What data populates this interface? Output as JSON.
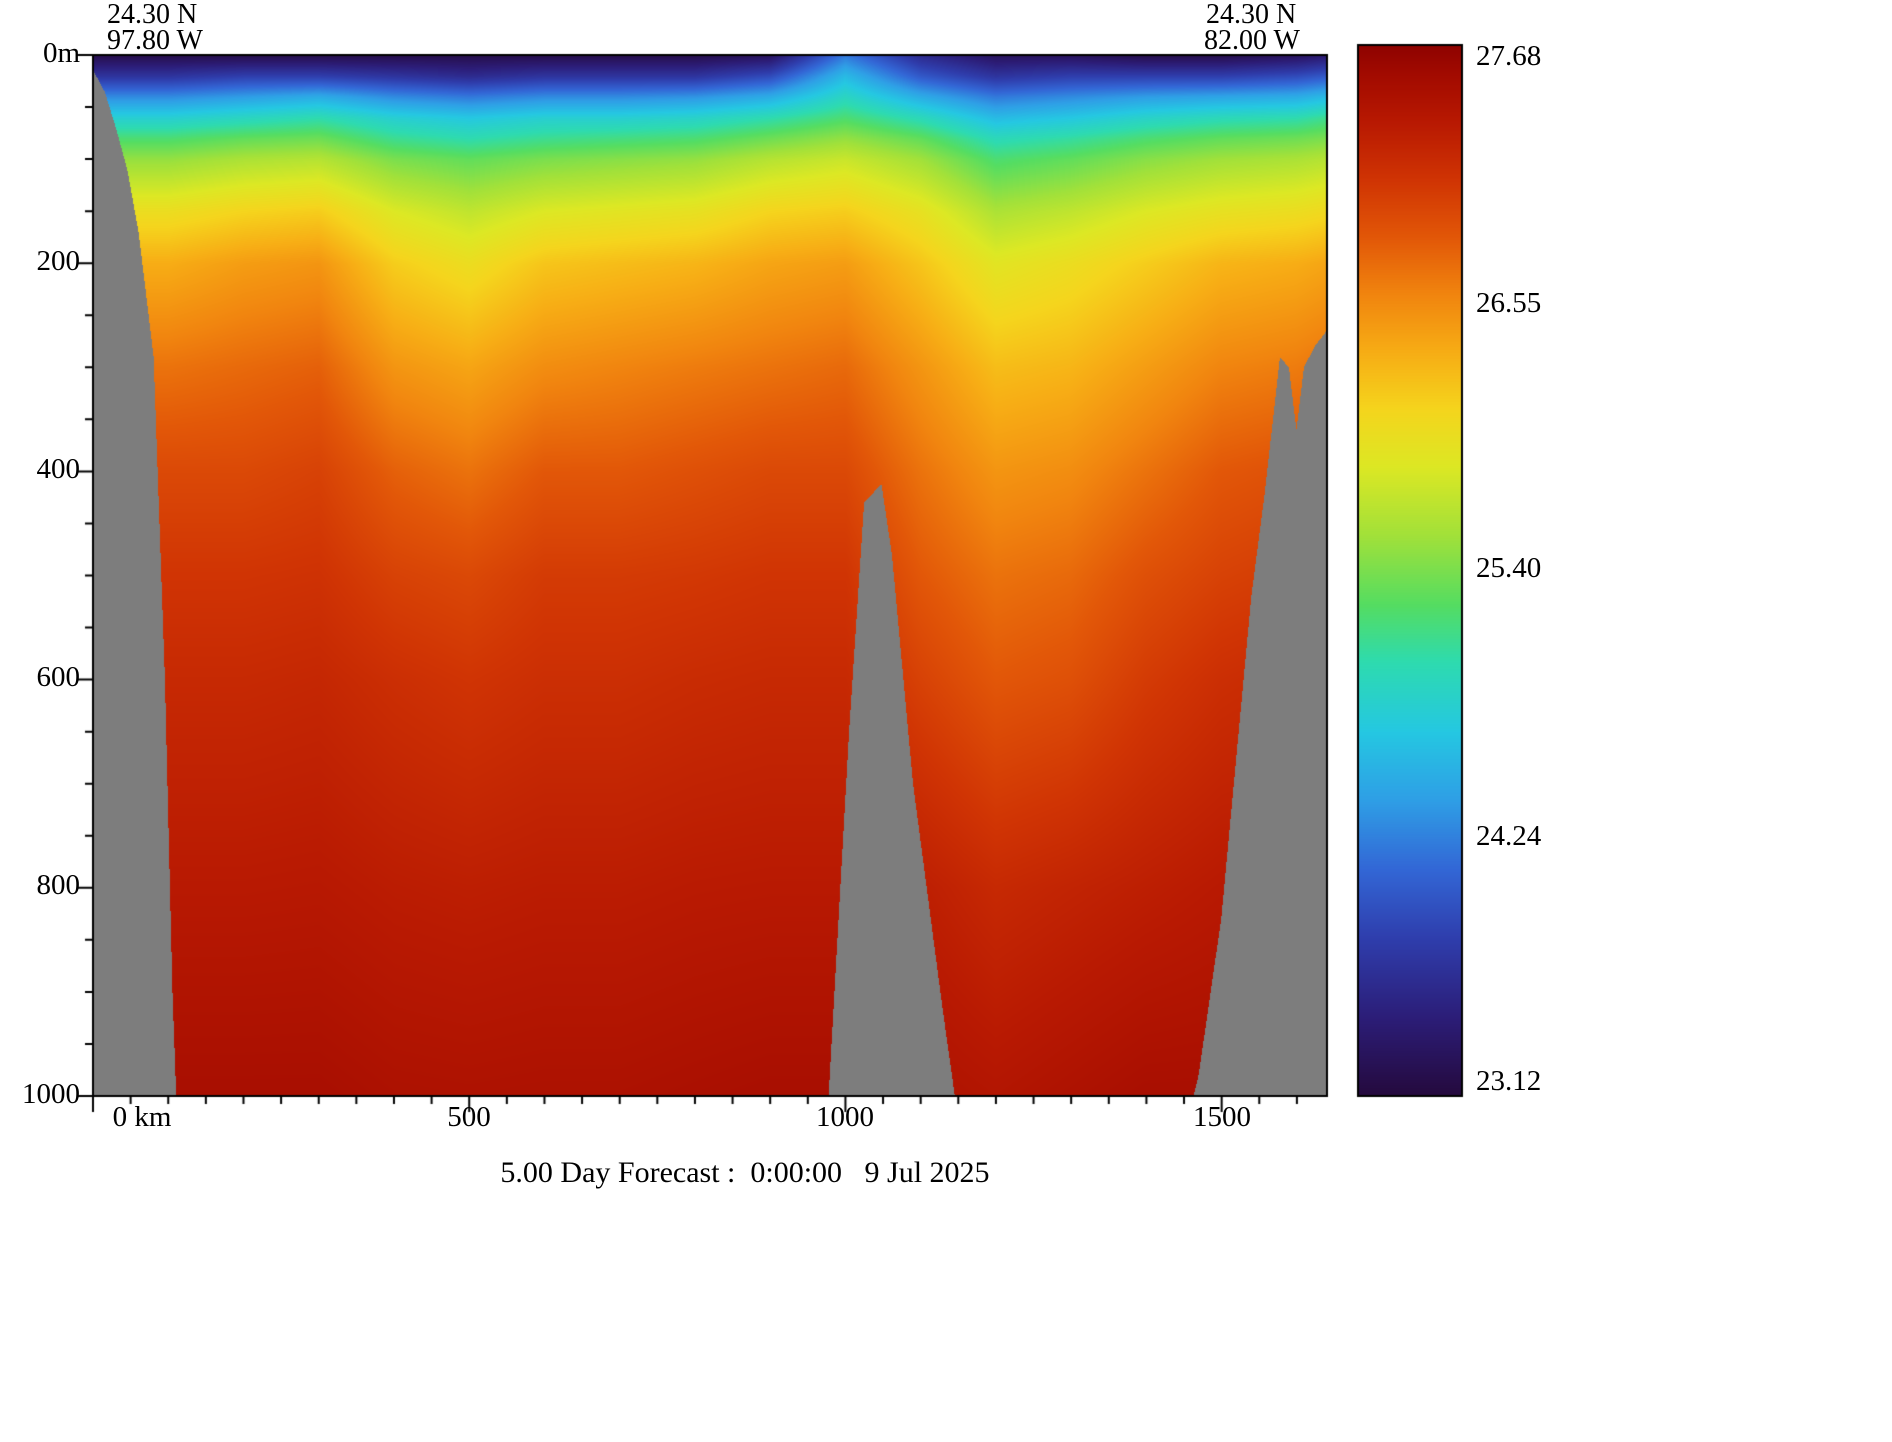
{
  "header": {
    "left": {
      "lat": "24.30 N",
      "lon": "97.80 W"
    },
    "right": {
      "lat": "24.30 N",
      "lon": "82.00 W"
    }
  },
  "caption": "5.00 Day Forecast :  0:00:00   9 Jul 2025",
  "axes": {
    "y_labels": [
      "0m",
      "200",
      "400",
      "600",
      "800",
      "1000"
    ],
    "x_labels": [
      "0 km",
      "500",
      "1000",
      "1500"
    ]
  },
  "colorbar": {
    "labels": [
      "27.68",
      "26.55",
      "25.40",
      "24.24",
      "23.12"
    ]
  },
  "chart_data": {
    "type": "heatmap",
    "title": "5.00 Day Forecast :  0:00:00   9 Jul 2025",
    "section_start": {
      "lat": "24.30 N",
      "lon": "97.80 W"
    },
    "section_end": {
      "lat": "24.30 N",
      "lon": "82.00 W"
    },
    "x_unit": "km",
    "y_unit": "m",
    "x_range": [
      0,
      1640
    ],
    "depth_range": [
      0,
      1000
    ],
    "x_major_ticks": [
      0,
      500,
      1000,
      1500
    ],
    "x_minor_step": 50,
    "y_major_ticks": [
      0,
      200,
      400,
      600,
      800,
      1000
    ],
    "y_minor_step": 50,
    "value_range": [
      23.12,
      27.68
    ],
    "colorbar_ticks": [
      27.68,
      26.55,
      25.4,
      24.24,
      23.12
    ],
    "land_color": "#7d7d7d",
    "colormap": [
      {
        "v": 23.12,
        "c": "#250a3e"
      },
      {
        "v": 23.45,
        "c": "#2c1d77"
      },
      {
        "v": 23.8,
        "c": "#2f3ead"
      },
      {
        "v": 24.1,
        "c": "#3367d6"
      },
      {
        "v": 24.4,
        "c": "#2f9fe6"
      },
      {
        "v": 24.7,
        "c": "#25c8e2"
      },
      {
        "v": 25.0,
        "c": "#2edbb0"
      },
      {
        "v": 25.25,
        "c": "#55dd62"
      },
      {
        "v": 25.55,
        "c": "#a2e13a"
      },
      {
        "v": 25.85,
        "c": "#dde824"
      },
      {
        "v": 26.1,
        "c": "#f5d51d"
      },
      {
        "v": 26.35,
        "c": "#f7ad15"
      },
      {
        "v": 26.6,
        "c": "#f1850f"
      },
      {
        "v": 26.85,
        "c": "#e25708"
      },
      {
        "v": 27.1,
        "c": "#d03404"
      },
      {
        "v": 27.35,
        "c": "#b81902"
      },
      {
        "v": 27.55,
        "c": "#a30b00"
      },
      {
        "v": 27.68,
        "c": "#8f0300"
      }
    ],
    "orientation": "values[xIndex][depthIndex]",
    "x": [
      0,
      100,
      200,
      300,
      400,
      500,
      600,
      700,
      800,
      900,
      1000,
      1100,
      1200,
      1300,
      1400,
      1500,
      1600,
      1640
    ],
    "depths": [
      0,
      20,
      40,
      60,
      80,
      100,
      150,
      200,
      300,
      400,
      500,
      600,
      800,
      1000
    ],
    "values": [
      [
        23.2,
        23.7,
        24.3,
        24.8,
        25.2,
        25.5,
        26.0,
        26.35,
        26.7,
        26.95,
        27.1,
        27.2,
        27.35,
        27.5
      ],
      [
        23.2,
        23.7,
        24.3,
        24.8,
        25.2,
        25.5,
        26.0,
        26.35,
        26.7,
        26.95,
        27.1,
        27.2,
        27.35,
        27.5
      ],
      [
        23.2,
        23.8,
        24.4,
        24.9,
        25.3,
        25.6,
        26.1,
        26.45,
        26.75,
        26.95,
        27.1,
        27.2,
        27.35,
        27.5
      ],
      [
        23.2,
        23.8,
        24.5,
        25.0,
        25.35,
        25.65,
        26.15,
        26.5,
        26.8,
        27.0,
        27.12,
        27.22,
        27.36,
        27.5
      ],
      [
        23.2,
        23.7,
        24.3,
        24.8,
        25.1,
        25.4,
        25.85,
        26.15,
        26.5,
        26.8,
        27.0,
        27.15,
        27.32,
        27.46
      ],
      [
        23.2,
        23.6,
        24.2,
        24.7,
        25.0,
        25.3,
        25.7,
        26.0,
        26.4,
        26.7,
        26.95,
        27.1,
        27.3,
        27.45
      ],
      [
        23.2,
        23.7,
        24.3,
        24.8,
        25.1,
        25.4,
        25.85,
        26.2,
        26.55,
        26.85,
        27.05,
        27.15,
        27.32,
        27.46
      ],
      [
        23.2,
        23.7,
        24.3,
        24.8,
        25.15,
        25.45,
        25.9,
        26.25,
        26.6,
        26.85,
        27.05,
        27.15,
        27.32,
        27.46
      ],
      [
        23.2,
        23.7,
        24.35,
        24.85,
        25.2,
        25.5,
        25.95,
        26.3,
        26.65,
        26.9,
        27.07,
        27.18,
        27.34,
        27.48
      ],
      [
        23.3,
        23.9,
        24.5,
        25.0,
        25.35,
        25.65,
        26.1,
        26.4,
        26.7,
        26.95,
        27.1,
        27.2,
        27.35,
        27.5
      ],
      [
        24.2,
        24.6,
        24.9,
        25.2,
        25.5,
        25.75,
        26.15,
        26.45,
        26.75,
        26.95,
        27.1,
        27.2,
        27.35,
        27.5
      ],
      [
        23.6,
        24.0,
        24.5,
        24.95,
        25.3,
        25.55,
        25.95,
        26.2,
        26.5,
        26.7,
        26.85,
        27.0,
        27.3,
        27.45
      ],
      [
        23.3,
        23.7,
        24.2,
        24.6,
        24.95,
        25.2,
        25.6,
        25.9,
        26.25,
        26.5,
        26.7,
        26.85,
        27.2,
        27.4
      ],
      [
        23.3,
        23.8,
        24.3,
        24.7,
        25.05,
        25.3,
        25.7,
        26.0,
        26.3,
        26.55,
        26.75,
        26.9,
        27.25,
        27.45
      ],
      [
        23.2,
        23.8,
        24.4,
        24.85,
        25.2,
        25.45,
        25.85,
        26.15,
        26.45,
        26.7,
        26.9,
        27.05,
        27.3,
        27.5
      ],
      [
        23.2,
        23.8,
        24.45,
        24.95,
        25.3,
        25.55,
        25.95,
        26.3,
        26.6,
        26.85,
        27.0,
        27.15,
        27.35,
        27.5
      ],
      [
        23.3,
        23.9,
        24.5,
        25.0,
        25.35,
        25.6,
        26.0,
        26.35,
        26.65,
        26.9,
        27.05,
        27.2,
        27.35,
        27.5
      ],
      [
        23.4,
        24.0,
        24.6,
        25.1,
        25.4,
        25.65,
        26.05,
        26.4,
        26.7,
        26.9,
        27.05,
        27.2,
        27.35,
        27.5
      ]
    ],
    "bathymetry": {
      "x": [
        0,
        15,
        30,
        45,
        60,
        80,
        95,
        105,
        115,
        970,
        1005,
        1025,
        1048,
        1062,
        1090,
        1130,
        1165,
        1430,
        1470,
        1500,
        1540,
        1558,
        1578,
        1590,
        1600,
        1610,
        1624,
        1640
      ],
      "depth": [
        15,
        35,
        70,
        110,
        170,
        290,
        600,
        900,
        1100,
        1100,
        650,
        430,
        412,
        480,
        700,
        920,
        1100,
        1100,
        980,
        830,
        520,
        420,
        290,
        300,
        360,
        300,
        280,
        265
      ]
    }
  }
}
